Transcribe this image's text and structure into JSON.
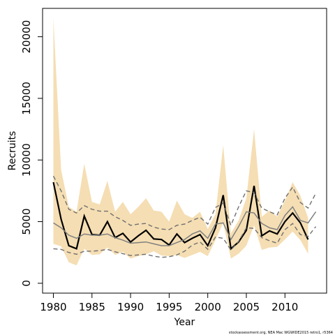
{
  "chart_data": {
    "type": "line",
    "title": "",
    "xlabel": "Year",
    "ylabel": "Recruits",
    "xlim": [
      1978.6,
      2015.4
    ],
    "ylim": [
      -800,
      22300
    ],
    "x_ticks": [
      1980,
      1985,
      1990,
      1995,
      2000,
      2005,
      2010
    ],
    "y_ticks": [
      0,
      5000,
      10000,
      15000,
      20000
    ],
    "grid": false,
    "legend": "none",
    "footnote": "stockassessment.org, NEA Mac WGWIDE2015 retro1, r5364",
    "colors": {
      "band": "#f5deb3",
      "main_line": "#000000",
      "retro_solid": "#808080",
      "retro_dashed": "#707070"
    },
    "series": [
      {
        "style": "band",
        "x": [
          1980,
          1981,
          1982,
          1983,
          1984,
          1985,
          1986,
          1987,
          1988,
          1989,
          1990,
          1991,
          1992,
          1993,
          1994,
          1995,
          1996,
          1997,
          1998,
          1999,
          2000,
          2001,
          2002,
          2003,
          2004,
          2005,
          2006,
          2007,
          2008,
          2009,
          2010,
          2011,
          2012,
          2013
        ],
        "lower": [
          3200,
          3000,
          1700,
          1450,
          2800,
          2300,
          2350,
          2900,
          2300,
          2550,
          2000,
          2200,
          2350,
          2600,
          2250,
          2200,
          2300,
          2050,
          2300,
          2550,
          2200,
          3500,
          4900,
          2000,
          2400,
          3050,
          4700,
          2700,
          2900,
          2950,
          3550,
          4200,
          3500,
          2400
        ],
        "upper": [
          21500,
          9200,
          6200,
          5800,
          9700,
          6600,
          6400,
          8300,
          5800,
          6600,
          5600,
          6200,
          6900,
          5900,
          5800,
          5000,
          6700,
          5600,
          5300,
          5800,
          4400,
          5600,
          11200,
          4050,
          5100,
          6900,
          12500,
          5400,
          5900,
          5400,
          6700,
          8200,
          7100,
          5300
        ]
      },
      {
        "style": "solid-black",
        "x": [
          1980,
          1981,
          1982,
          1983,
          1984,
          1985,
          1986,
          1987,
          1988,
          1989,
          1990,
          1991,
          1992,
          1993,
          1994,
          1995,
          1996,
          1997,
          1998,
          1999,
          2000,
          2001,
          2002,
          2003,
          2004,
          2005,
          2006,
          2007,
          2008,
          2009,
          2010,
          2011,
          2012,
          2013
        ],
        "y": [
          8200,
          5200,
          3050,
          2800,
          5450,
          3950,
          3900,
          5000,
          3700,
          4050,
          3350,
          3850,
          4300,
          3600,
          3550,
          3100,
          4000,
          3300,
          3650,
          3950,
          3050,
          4500,
          7150,
          2800,
          3350,
          4300,
          7900,
          3850,
          4250,
          4000,
          5000,
          5700,
          4900,
          3550
        ]
      },
      {
        "style": "solid-grey",
        "x": [
          1980,
          1981,
          1982,
          1983,
          1984,
          1985,
          1986,
          1987,
          1988,
          1989,
          1990,
          1991,
          1992,
          1993,
          1994,
          1995,
          1996,
          1997,
          1998,
          1999,
          2000,
          2001,
          2002,
          2003,
          2004,
          2005,
          2006,
          2007,
          2008,
          2009,
          2010,
          2011,
          2012,
          2013,
          2014
        ],
        "y": [
          4900,
          4500,
          3900,
          3650,
          4000,
          3900,
          3900,
          4000,
          3700,
          3500,
          3250,
          3300,
          3350,
          3200,
          3050,
          3050,
          3300,
          3550,
          4000,
          4250,
          3650,
          4800,
          4900,
          3550,
          4600,
          5800,
          5700,
          4850,
          4500,
          4350,
          5500,
          6200,
          5100,
          4900,
          5800
        ]
      },
      {
        "style": "dashed-upper",
        "x": [
          1980,
          1981,
          1982,
          1983,
          1984,
          1985,
          1986,
          1987,
          1988,
          1989,
          1990,
          1991,
          1992,
          1993,
          1994,
          1995,
          1996,
          1997,
          1998,
          1999,
          2000,
          2001,
          2002,
          2003,
          2004,
          2005,
          2006,
          2007,
          2008,
          2009,
          2010,
          2011,
          2012,
          2013,
          2014
        ],
        "y": [
          8700,
          7500,
          6000,
          5700,
          6300,
          6000,
          5850,
          5850,
          5400,
          5100,
          4700,
          4800,
          4850,
          4550,
          4400,
          4350,
          4700,
          4800,
          5100,
          5350,
          4800,
          6150,
          6500,
          4700,
          6200,
          7500,
          7350,
          6100,
          5800,
          5550,
          6900,
          7800,
          6550,
          6100,
          7300
        ]
      },
      {
        "style": "dashed-lower",
        "x": [
          1980,
          1981,
          1982,
          1983,
          1984,
          1985,
          1986,
          1987,
          1988,
          1989,
          1990,
          1991,
          1992,
          1993,
          1994,
          1995,
          1996,
          1997,
          1998,
          1999,
          2000,
          2001,
          2002,
          2003,
          2004,
          2005,
          2006,
          2007,
          2008,
          2009,
          2010,
          2011,
          2012,
          2013,
          2014
        ],
        "y": [
          2800,
          2750,
          2500,
          2350,
          2600,
          2600,
          2650,
          2750,
          2550,
          2400,
          2250,
          2300,
          2350,
          2200,
          2100,
          2150,
          2300,
          2600,
          3100,
          3350,
          2750,
          3750,
          3650,
          2700,
          3400,
          4500,
          4450,
          3700,
          3450,
          3250,
          4350,
          4850,
          3950,
          3800,
          4600
        ]
      }
    ]
  }
}
